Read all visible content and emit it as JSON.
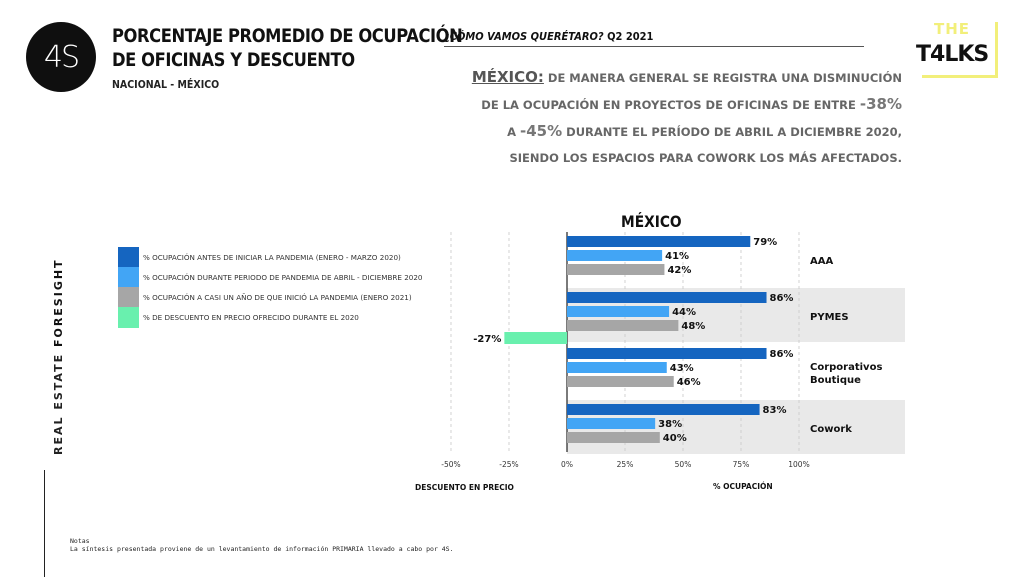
{
  "header": {
    "logo_text": "4S",
    "title_line1": "PORCENTAJE PROMEDIO DE OCUPACIÓN",
    "title_line2": "DE OFICINAS Y DESCUENTO",
    "subtitle": "NACIONAL - MÉXICO",
    "kicker_label": "¿CÓMO VAMOS QUERÉTARO?",
    "kicker_period": "Q2 2021",
    "brand_top": "THE",
    "brand_word": "T4LKS"
  },
  "description": {
    "country": "MÉXICO:",
    "part1": "DE MANERA GENERAL SE REGISTRA UNA DISMINUCIÓN DE LA OCUPACIÓN EN PROYECTOS DE OFICINAS DE ENTRE",
    "pct_low": "-38%",
    "connector": "A",
    "pct_high": "-45%",
    "part2": "DURANTE EL PERÍODO DE ABRIL A DICIEMBRE 2020, SIENDO  LOS ESPACIOS PARA COWORK LOS MÁS AFECTADOS."
  },
  "side_label": {
    "light": "REAL ESTATE",
    "strong": "FORESIGHT"
  },
  "notes": {
    "heading": "Notas",
    "text": "La síntesis presentada proviene de un levantamiento de información PRIMARIA llevado a cabo por 4S."
  },
  "colors": {
    "pre_pandemic": "#1565c0",
    "during_pandemic": "#42a5f5",
    "one_year_after": "#a6a6a6",
    "discount": "#69f0ae",
    "band": "#e9e9e9"
  },
  "chart_data": {
    "type": "bar",
    "orientation": "horizontal",
    "title": "MÉXICO",
    "categories": [
      "AAA",
      "PYMES",
      "Corporativos Boutique",
      "Cowork"
    ],
    "series": [
      {
        "name": "% OCUPACIÓN ANTES DE INICIAR LA PANDEMIA (ENERO - MARZO 2020)",
        "color": "#1565c0",
        "values": [
          79,
          86,
          86,
          83
        ]
      },
      {
        "name": "% OCUPACIÓN DURANTE PERIODO DE PANDEMIA DE ABRIL - DICIEMBRE 2020",
        "color": "#42a5f5",
        "values": [
          41,
          44,
          43,
          38
        ]
      },
      {
        "name": "% OCUPACIÓN A CASI UN AÑO DE QUE INICIÓ LA PANDEMIA (ENERO 2021)",
        "color": "#a6a6a6",
        "values": [
          42,
          48,
          46,
          40
        ]
      },
      {
        "name": "% DE DESCUENTO EN PRECIO OFRECIDO DURANTE EL 2020",
        "color": "#69f0ae",
        "values": [
          null,
          null,
          -27,
          null
        ]
      }
    ],
    "value_labels": {
      "AAA": [
        "79%",
        "41%",
        "42%"
      ],
      "PYMES": [
        "86%",
        "44%",
        "48%"
      ],
      "Corporativos Boutique": [
        "86%",
        "43%",
        "46%"
      ],
      "Cowork": [
        "83%",
        "38%",
        "40%"
      ]
    },
    "discount_label": "-27%",
    "category_labels": [
      [
        "AAA"
      ],
      [
        "PYMES"
      ],
      [
        "Corporativos",
        "Boutique"
      ],
      [
        "Cowork"
      ]
    ],
    "x_ticks": [
      -50,
      -25,
      0,
      25,
      50,
      75,
      100
    ],
    "x_tick_labels": [
      "-50%",
      "-25%",
      "0%",
      "25%",
      "50%",
      "75%",
      "100%"
    ],
    "xlim": [
      -50,
      100
    ],
    "xlabel_left": "DESCUENTO EN PRECIO",
    "xlabel_right": "% OCUPACIÓN",
    "grid": true,
    "legend_position": "left"
  }
}
